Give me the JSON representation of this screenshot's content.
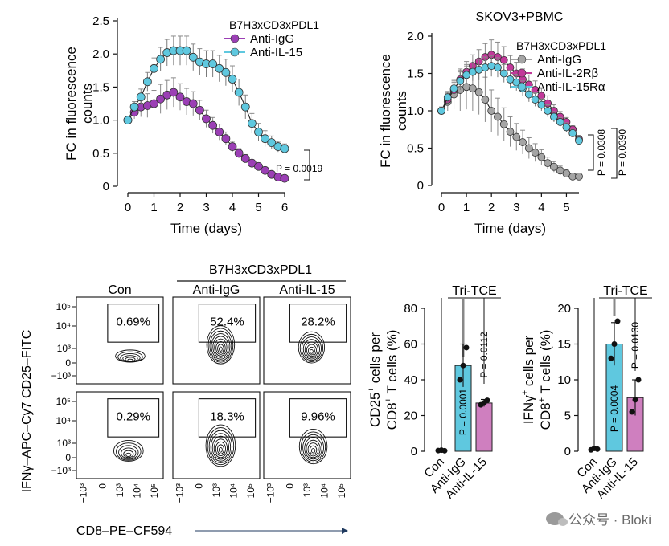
{
  "chart_data": [
    {
      "type": "line",
      "id": "line_left",
      "title": "",
      "legend_title": "B7H3xCD3xPDL1",
      "xlabel": "Time (days)",
      "ylabel": "FC in fluorescence counts",
      "xlim": [
        0,
        6
      ],
      "ylim": [
        0,
        2.5
      ],
      "x_ticks": [
        "0",
        "1",
        "2",
        "3",
        "4",
        "5",
        "6"
      ],
      "y_ticks": [
        "0",
        "0.5",
        "1.0",
        "1.5",
        "2.0",
        "2.5"
      ],
      "p_label": "P = 0.0019",
      "series": [
        {
          "name": "Anti-IgG",
          "color": "#9b3fb5",
          "x": [
            0,
            0.25,
            0.5,
            0.75,
            1,
            1.25,
            1.5,
            1.75,
            2,
            2.25,
            2.5,
            2.75,
            3,
            3.25,
            3.5,
            3.75,
            4,
            4.25,
            4.5,
            4.75,
            5,
            5.25,
            5.5,
            5.75,
            6
          ],
          "y": [
            1.0,
            1.12,
            1.2,
            1.22,
            1.25,
            1.32,
            1.38,
            1.42,
            1.35,
            1.28,
            1.25,
            1.15,
            1.02,
            0.92,
            0.82,
            0.72,
            0.6,
            0.5,
            0.42,
            0.35,
            0.3,
            0.24,
            0.18,
            0.14,
            0.12
          ],
          "err": [
            0.05,
            0.1,
            0.15,
            0.18,
            0.2,
            0.22,
            0.22,
            0.22,
            0.2,
            0.2,
            0.18,
            0.15,
            0.13,
            0.12,
            0.12,
            0.1,
            0.08,
            0.07,
            0.06,
            0.05,
            0.05,
            0.04,
            0.03,
            0.03,
            0.02
          ]
        },
        {
          "name": "Anti-IL-15",
          "color": "#5fc8df",
          "x": [
            0,
            0.25,
            0.5,
            0.75,
            1,
            1.25,
            1.5,
            1.75,
            2,
            2.25,
            2.5,
            2.75,
            3,
            3.25,
            3.5,
            3.75,
            4,
            4.25,
            4.5,
            4.75,
            5,
            5.25,
            5.5,
            5.75,
            6
          ],
          "y": [
            1.0,
            1.2,
            1.35,
            1.58,
            1.78,
            1.92,
            2.02,
            2.05,
            2.05,
            2.05,
            1.95,
            1.88,
            1.85,
            1.85,
            1.78,
            1.72,
            1.62,
            1.42,
            1.2,
            0.95,
            0.82,
            0.72,
            0.66,
            0.6,
            0.57
          ],
          "err": [
            0.05,
            0.08,
            0.12,
            0.14,
            0.16,
            0.18,
            0.2,
            0.22,
            0.22,
            0.22,
            0.2,
            0.2,
            0.2,
            0.2,
            0.2,
            0.2,
            0.2,
            0.2,
            0.18,
            0.15,
            0.13,
            0.12,
            0.1,
            0.08,
            0.07
          ]
        }
      ]
    },
    {
      "type": "line",
      "id": "line_right",
      "title": "SKOV3+PBMC",
      "legend_title": "B7H3xCD3xPDL1",
      "xlabel": "Time (days)",
      "ylabel": "FC in fluorescence counts",
      "xlim": [
        0,
        5.5
      ],
      "ylim": [
        0,
        2.0
      ],
      "x_ticks": [
        "0",
        "1",
        "2",
        "3",
        "4",
        "5"
      ],
      "y_ticks": [
        "0",
        "0.5",
        "1.0",
        "1.5",
        "2.0"
      ],
      "p_labels": [
        "P = 0.0308",
        "P = 0.0390"
      ],
      "series": [
        {
          "name": "Anti-IgG",
          "color": "#a5a5a5",
          "x": [
            0,
            0.25,
            0.5,
            0.75,
            1,
            1.25,
            1.5,
            1.75,
            2,
            2.25,
            2.5,
            2.75,
            3,
            3.25,
            3.5,
            3.75,
            4,
            4.25,
            4.5,
            4.75,
            5,
            5.25,
            5.5
          ],
          "y": [
            1.0,
            1.12,
            1.22,
            1.28,
            1.32,
            1.3,
            1.25,
            1.15,
            1.0,
            0.92,
            0.82,
            0.72,
            0.65,
            0.58,
            0.5,
            0.44,
            0.38,
            0.3,
            0.25,
            0.2,
            0.16,
            0.12,
            0.12
          ],
          "err": [
            0.05,
            0.12,
            0.2,
            0.28,
            0.3,
            0.3,
            0.3,
            0.3,
            0.28,
            0.25,
            0.22,
            0.2,
            0.18,
            0.16,
            0.14,
            0.12,
            0.1,
            0.08,
            0.07,
            0.06,
            0.05,
            0.04,
            0.03
          ]
        },
        {
          "name": "Anti-IL-2Rβ",
          "color": "#c2399a",
          "x": [
            0,
            0.25,
            0.5,
            0.75,
            1,
            1.25,
            1.5,
            1.75,
            2,
            2.25,
            2.5,
            2.75,
            3,
            3.25,
            3.5,
            3.75,
            4,
            4.25,
            4.5,
            4.75,
            5,
            5.25,
            5.5
          ],
          "y": [
            1.0,
            1.15,
            1.28,
            1.42,
            1.52,
            1.6,
            1.66,
            1.72,
            1.75,
            1.72,
            1.68,
            1.58,
            1.5,
            1.42,
            1.35,
            1.28,
            1.2,
            1.1,
            1.0,
            0.92,
            0.85,
            0.75,
            0.62
          ],
          "err": [
            0.05,
            0.08,
            0.1,
            0.12,
            0.14,
            0.15,
            0.16,
            0.18,
            0.2,
            0.2,
            0.18,
            0.16,
            0.15,
            0.14,
            0.13,
            0.12,
            0.1,
            0.1,
            0.08,
            0.07,
            0.06,
            0.05,
            0.05
          ]
        },
        {
          "name": "Anti-IL-15Rα",
          "color": "#5fc8df",
          "x": [
            0,
            0.25,
            0.5,
            0.75,
            1,
            1.25,
            1.5,
            1.75,
            2,
            2.25,
            2.5,
            2.75,
            3,
            3.25,
            3.5,
            3.75,
            4,
            4.25,
            4.5,
            4.75,
            5,
            5.25,
            5.5
          ],
          "y": [
            1.0,
            1.18,
            1.3,
            1.4,
            1.48,
            1.52,
            1.55,
            1.58,
            1.6,
            1.58,
            1.5,
            1.42,
            1.38,
            1.3,
            1.22,
            1.15,
            1.08,
            1.0,
            0.92,
            0.85,
            0.78,
            0.7,
            0.6
          ],
          "err": [
            0.05,
            0.08,
            0.1,
            0.12,
            0.12,
            0.12,
            0.14,
            0.14,
            0.14,
            0.13,
            0.12,
            0.12,
            0.11,
            0.1,
            0.1,
            0.09,
            0.08,
            0.08,
            0.07,
            0.06,
            0.06,
            0.05,
            0.05
          ]
        }
      ]
    },
    {
      "type": "contour",
      "id": "flow_grid",
      "title": "B7H3xCD3xPDL1",
      "ylabel": "IFNγ–APC–Cy7 CD25–FITC",
      "xlabel": "CD8–PE–CF594",
      "columns": [
        "Con",
        "Anti-IgG",
        "Anti-IL-15"
      ],
      "y_ticks": [
        "10⁵",
        "10⁴",
        "10³",
        "0",
        "−10³"
      ],
      "x_ticks": [
        "−10³",
        "0",
        "10³",
        "10⁴",
        "10⁵"
      ],
      "percentages": [
        [
          "0.69%",
          "52.4%",
          "28.2%"
        ],
        [
          "0.29%",
          "18.3%",
          "9.96%"
        ]
      ]
    },
    {
      "type": "bar",
      "id": "bar_cd25",
      "title": "Tri-TCE",
      "ylabel_main": "CD25",
      "ylabel_sup": "+",
      "ylabel_rest": " cells per",
      "ylabel_line2_main": "CD8",
      "ylabel_line2_sup": "+",
      "ylabel_line2_rest": " T cells (%)",
      "ylim": [
        0,
        80
      ],
      "y_ticks": [
        "0",
        "20",
        "40",
        "60",
        "80"
      ],
      "categories": [
        "Con",
        "Anti-IgG",
        "Anti-IL-15"
      ],
      "values": [
        0,
        48,
        27
      ],
      "errors": [
        0,
        12,
        2
      ],
      "colors": [
        "#ffffff",
        "#5fc8df",
        "#cf7fbf"
      ],
      "points": [
        [
          0.4,
          0.6,
          0.3
        ],
        [
          40,
          48,
          58
        ],
        [
          26,
          27,
          28.5
        ]
      ],
      "p_labels": [
        "P = 0.0001",
        "P = 0.0112"
      ]
    },
    {
      "type": "bar",
      "id": "bar_ifng",
      "title": "Tri-TCE",
      "ylabel_main": "IFNγ",
      "ylabel_sup": "+",
      "ylabel_rest": " cells per",
      "ylabel_line2_main": "CD8",
      "ylabel_line2_sup": "+",
      "ylabel_line2_rest": " T cells (%)",
      "ylim": [
        0,
        20
      ],
      "y_ticks": [
        "0",
        "5",
        "10",
        "15",
        "20"
      ],
      "categories": [
        "Con",
        "Anti-IgG",
        "Anti-IL-15"
      ],
      "values": [
        0.3,
        15,
        7.5
      ],
      "errors": [
        0.2,
        3,
        2.5
      ],
      "colors": [
        "#ffffff",
        "#5fc8df",
        "#cf7fbf"
      ],
      "points": [
        [
          0.2,
          0.4,
          0.3
        ],
        [
          13,
          15,
          18.2
        ],
        [
          5.5,
          7.2,
          10
        ]
      ],
      "p_labels": [
        "P = 0.0004",
        "P = 0.0130"
      ]
    }
  ],
  "watermark": "公众号 · Bloki"
}
